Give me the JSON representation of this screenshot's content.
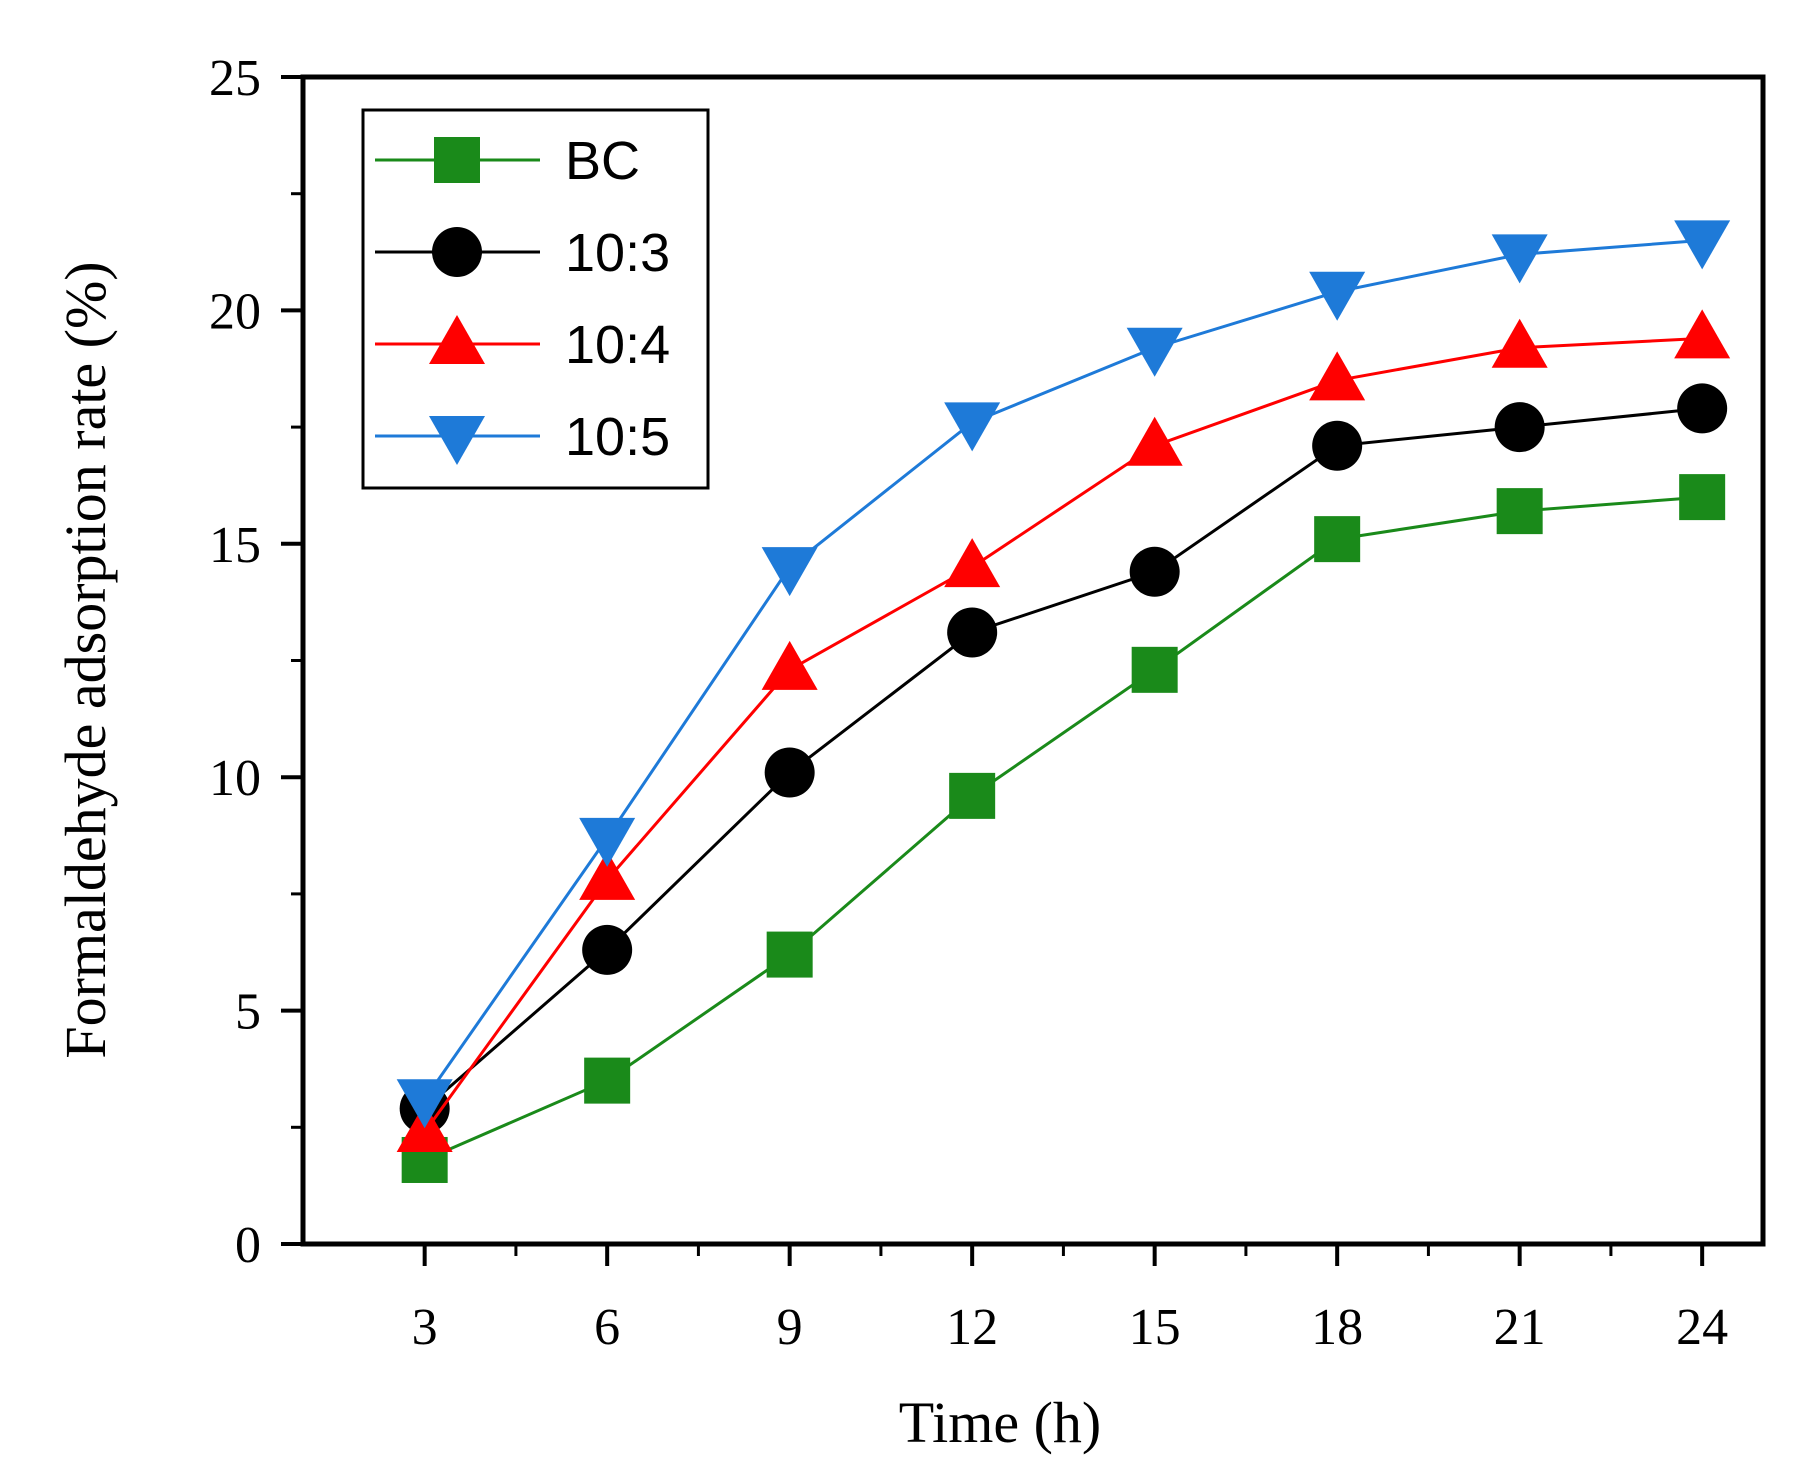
{
  "chart_data": {
    "type": "line",
    "title": "",
    "xlabel": "Time (h)",
    "ylabel": "Formaldehyde adsorption rate (%)",
    "x": [
      3,
      6,
      9,
      12,
      15,
      18,
      21,
      24
    ],
    "x_tick_labels": [
      "3",
      "6",
      "9",
      "12",
      "15",
      "18",
      "21",
      "24"
    ],
    "xlim": [
      1,
      25
    ],
    "ylim": [
      0,
      25
    ],
    "y_ticks": [
      0,
      5,
      10,
      15,
      20,
      25
    ],
    "y_tick_labels": [
      "0",
      "5",
      "10",
      "15",
      "20",
      "25"
    ],
    "grid": false,
    "legend_position": "top-left",
    "series": [
      {
        "name": "BC",
        "color": "#1a8a1a",
        "marker": "square",
        "values": [
          1.8,
          3.5,
          6.2,
          9.6,
          12.3,
          15.1,
          15.7,
          16.0
        ]
      },
      {
        "name": "10:3",
        "color": "#000000",
        "marker": "circle",
        "values": [
          2.9,
          6.3,
          10.1,
          13.1,
          14.4,
          17.1,
          17.5,
          17.9
        ]
      },
      {
        "name": "10:4",
        "color": "#ff0000",
        "marker": "triangle-up",
        "values": [
          2.4,
          7.8,
          12.3,
          14.5,
          17.1,
          18.5,
          19.2,
          19.4
        ]
      },
      {
        "name": "10:5",
        "color": "#1e7ad8",
        "marker": "triangle-down",
        "values": [
          3.1,
          8.7,
          14.5,
          17.6,
          19.2,
          20.4,
          21.2,
          21.5
        ]
      }
    ]
  }
}
